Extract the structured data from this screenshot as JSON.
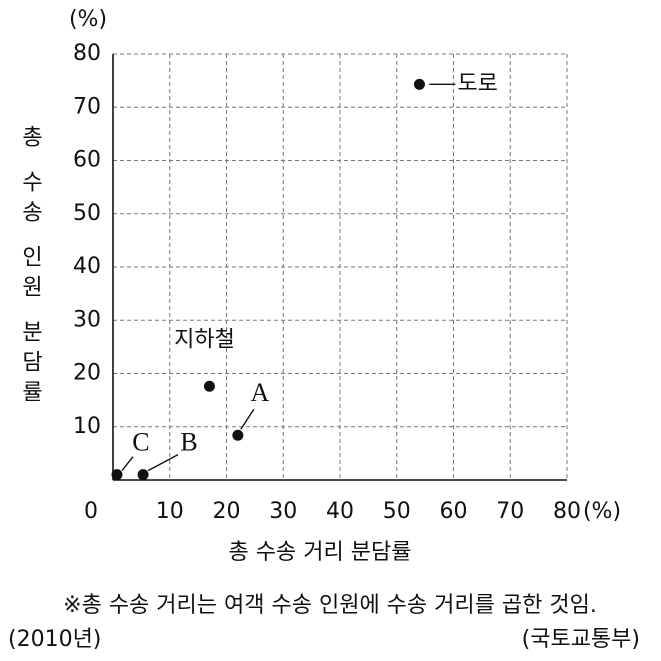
{
  "chart_data": {
    "type": "scatter",
    "y_unit": "(%)",
    "x_unit": "(%)",
    "ylabel": "총 수송 인원 분담률",
    "xlabel": "총 수송 거리 분담률",
    "note": "※총 수송 거리는 여객 수송 인원에 수송 거리를 곱한 것임.",
    "year": "(2010년)",
    "source": "(국토교통부)",
    "labels": [
      "도로",
      "지하철",
      "A",
      "B",
      "C"
    ],
    "x": [
      54,
      17,
      22,
      5.3,
      0.7
    ],
    "values": [
      74.3,
      17.6,
      8.4,
      1,
      1
    ],
    "color": "#111111",
    "xlim": [
      0,
      80
    ],
    "ylim": [
      0,
      80
    ],
    "xticks": [
      0,
      10,
      20,
      30,
      40,
      50,
      60,
      70,
      80
    ],
    "yticks": [
      10,
      20,
      30,
      40,
      50,
      60,
      70,
      80
    ],
    "grid": true
  }
}
